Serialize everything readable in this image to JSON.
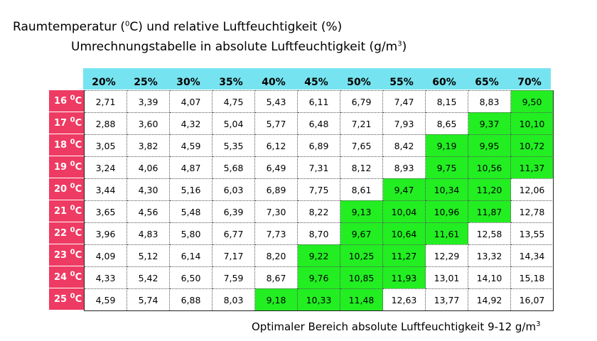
{
  "title_line1": {
    "pre": "Raumtemperatur (",
    "sup": "0",
    "post": "C)  und relative Luftfeuchtigkeit (%)"
  },
  "title_line2": {
    "pre": "Umrechnungstabelle in absolute Luftfeuchtigkeit (g/m",
    "sup": "3",
    "post": ")"
  },
  "footer": {
    "pre": "Optimaler Bereich absolute Luftfeuchtigkeit 9-12 g/m",
    "sup": "3"
  },
  "colors": {
    "header_bg": "#76e4f0",
    "row_header_bg": "#ee3b63",
    "optimal_green": "#22ee22"
  },
  "columns": [
    "20%",
    "25%",
    "30%",
    "35%",
    "40%",
    "45%",
    "50%",
    "55%",
    "60%",
    "65%",
    "70%"
  ],
  "rows": [
    {
      "num": "16",
      "sup": "0",
      "unit": "C",
      "values": [
        "2,71",
        "3,39",
        "4,07",
        "4,75",
        "5,43",
        "6,11",
        "6,79",
        "7,47",
        "8,15",
        "8,83",
        "9,50"
      ]
    },
    {
      "num": "17",
      "sup": "0",
      "unit": "C",
      "values": [
        "2,88",
        "3,60",
        "4,32",
        "5,04",
        "5,77",
        "6,48",
        "7,21",
        "7,93",
        "8,65",
        "9,37",
        "10,10"
      ]
    },
    {
      "num": "18",
      "sup": "0",
      "unit": "C",
      "values": [
        "3,05",
        "3,82",
        "4,59",
        "5,35",
        "6,12",
        "6,89",
        "7,65",
        "8,42",
        "9,19",
        "9,95",
        "10,72"
      ]
    },
    {
      "num": "19",
      "sup": "0",
      "unit": "C",
      "values": [
        "3,24",
        "4,06",
        "4,87",
        "5,68",
        "6,49",
        "7,31",
        "8,12",
        "8,93",
        "9,75",
        "10,56",
        "11,37"
      ]
    },
    {
      "num": "20",
      "sup": "0",
      "unit": "C",
      "values": [
        "3,44",
        "4,30",
        "5,16",
        "6,03",
        "6,89",
        "7,75",
        "8,61",
        "9,47",
        "10,34",
        "11,20",
        "12,06"
      ]
    },
    {
      "num": "21",
      "sup": "0",
      "unit": "C",
      "values": [
        "3,65",
        "4,56",
        "5,48",
        "6,39",
        "7,30",
        "8,22",
        "9,13",
        "10,04",
        "10,96",
        "11,87",
        "12,78"
      ]
    },
    {
      "num": "22",
      "sup": "0",
      "unit": "C",
      "values": [
        "3,96",
        "4,83",
        "5,80",
        "6,77",
        "7,73",
        "8,70",
        "9,67",
        "10,64",
        "11,61",
        "12,58",
        "13,55"
      ]
    },
    {
      "num": "23",
      "sup": "0",
      "unit": "C",
      "values": [
        "4,09",
        "5,12",
        "6,14",
        "7,17",
        "8,20",
        "9,22",
        "10,25",
        "11,27",
        "12,29",
        "13,32",
        "14,34"
      ]
    },
    {
      "num": "24",
      "sup": "0",
      "unit": "C",
      "values": [
        "4,33",
        "5,42",
        "6,50",
        "7,59",
        "8,67",
        "9,76",
        "10,85",
        "11,93",
        "13,01",
        "14,10",
        "15,18"
      ]
    },
    {
      "num": "25",
      "sup": "0",
      "unit": "C",
      "values": [
        "4,59",
        "5,74",
        "6,88",
        "8,03",
        "9,18",
        "10,33",
        "11,48",
        "12,63",
        "13,77",
        "14,92",
        "16,07"
      ]
    }
  ],
  "highlighted": [
    [
      10
    ],
    [
      9,
      10
    ],
    [
      8,
      9,
      10
    ],
    [
      8,
      9,
      10
    ],
    [
      7,
      8,
      9
    ],
    [
      6,
      7,
      8,
      9
    ],
    [
      6,
      7,
      8
    ],
    [
      5,
      6,
      7
    ],
    [
      5,
      6,
      7
    ],
    [
      4,
      5,
      6
    ]
  ]
}
